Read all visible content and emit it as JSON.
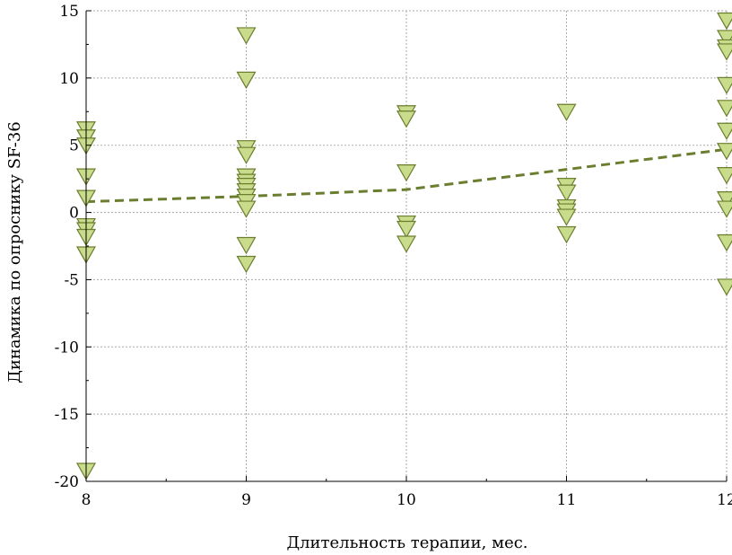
{
  "chart_data": {
    "type": "scatter",
    "title": "",
    "xlabel": "Длительность терапии, мес.",
    "ylabel": "Динамика по опроснику SF-36",
    "xlim": [
      8,
      12
    ],
    "ylim": [
      -20,
      15
    ],
    "xticks": [
      "8",
      "9",
      "10",
      "11",
      "12"
    ],
    "yticks": [
      "-20",
      "-15",
      "-10",
      "-5",
      "0",
      "5",
      "10",
      "15"
    ],
    "grid": true,
    "marker": "triangle-down",
    "colors": {
      "marker_fill": "#c8dc8c",
      "marker_stroke": "#6b7d2e",
      "trend_line": "#6b7d2e",
      "grid": "#aaaaaa",
      "axis": "#000000"
    },
    "points": [
      {
        "x": 8,
        "y": 6.2
      },
      {
        "x": 8,
        "y": 5.6
      },
      {
        "x": 8,
        "y": 5.0
      },
      {
        "x": 8,
        "y": 2.7
      },
      {
        "x": 8,
        "y": 1.1
      },
      {
        "x": 8,
        "y": -1.0
      },
      {
        "x": 8,
        "y": -1.3
      },
      {
        "x": 8,
        "y": -1.8
      },
      {
        "x": 8,
        "y": -3.1
      },
      {
        "x": 8,
        "y": -19.2
      },
      {
        "x": 9,
        "y": 13.2
      },
      {
        "x": 9,
        "y": 9.9
      },
      {
        "x": 9,
        "y": 4.8
      },
      {
        "x": 9,
        "y": 4.3
      },
      {
        "x": 9,
        "y": 2.7
      },
      {
        "x": 9,
        "y": 2.3
      },
      {
        "x": 9,
        "y": 2.0
      },
      {
        "x": 9,
        "y": 1.6
      },
      {
        "x": 9,
        "y": 1.2
      },
      {
        "x": 9,
        "y": 0.8
      },
      {
        "x": 9,
        "y": 0.3
      },
      {
        "x": 9,
        "y": -2.4
      },
      {
        "x": 9,
        "y": -3.8
      },
      {
        "x": 10,
        "y": 7.4
      },
      {
        "x": 10,
        "y": 7.0
      },
      {
        "x": 10,
        "y": 3.0
      },
      {
        "x": 10,
        "y": -0.8
      },
      {
        "x": 10,
        "y": -1.2
      },
      {
        "x": 10,
        "y": -2.3
      },
      {
        "x": 11,
        "y": 7.5
      },
      {
        "x": 11,
        "y": 2.0
      },
      {
        "x": 11,
        "y": 1.5
      },
      {
        "x": 11,
        "y": 0.4
      },
      {
        "x": 11,
        "y": 0.1
      },
      {
        "x": 11,
        "y": -0.3
      },
      {
        "x": 11,
        "y": -1.6
      },
      {
        "x": 12,
        "y": 14.3
      },
      {
        "x": 12,
        "y": 13.0
      },
      {
        "x": 12,
        "y": 12.3
      },
      {
        "x": 12,
        "y": 12.0
      },
      {
        "x": 12,
        "y": 9.5
      },
      {
        "x": 12,
        "y": 7.8
      },
      {
        "x": 12,
        "y": 6.1
      },
      {
        "x": 12,
        "y": 4.6
      },
      {
        "x": 12,
        "y": 2.8
      },
      {
        "x": 12,
        "y": 1.0
      },
      {
        "x": 12,
        "y": 0.3
      },
      {
        "x": 12,
        "y": -2.2
      },
      {
        "x": 12,
        "y": -5.5
      }
    ],
    "trend": {
      "style": "dashed",
      "x": [
        8,
        9,
        10,
        11,
        12
      ],
      "y": [
        0.8,
        1.2,
        1.7,
        3.2,
        4.7
      ]
    }
  }
}
